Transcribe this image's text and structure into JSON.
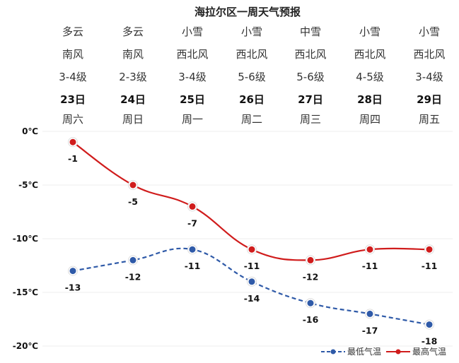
{
  "chart_data": {
    "type": "line",
    "title": "海拉尔区一周天气预报",
    "columns": [
      {
        "weather": "多云",
        "wind_dir": "南风",
        "wind_level": "3-4级",
        "date": "23日",
        "weekday": "周六"
      },
      {
        "weather": "多云",
        "wind_dir": "南风",
        "wind_level": "2-3级",
        "date": "24日",
        "weekday": "周日"
      },
      {
        "weather": "小雪",
        "wind_dir": "西北风",
        "wind_level": "3-4级",
        "date": "25日",
        "weekday": "周一"
      },
      {
        "weather": "小雪",
        "wind_dir": "西北风",
        "wind_level": "5-6级",
        "date": "26日",
        "weekday": "周二"
      },
      {
        "weather": "中雪",
        "wind_dir": "西北风",
        "wind_level": "5-6级",
        "date": "27日",
        "weekday": "周三"
      },
      {
        "weather": "小雪",
        "wind_dir": "西北风",
        "wind_level": "4-5级",
        "date": "28日",
        "weekday": "周四"
      },
      {
        "weather": "小雪",
        "wind_dir": "西北风",
        "wind_level": "3-4级",
        "date": "29日",
        "weekday": "周五"
      }
    ],
    "categories": [
      "23日",
      "24日",
      "25日",
      "26日",
      "27日",
      "28日",
      "29日"
    ],
    "series": [
      {
        "name": "最高气温",
        "values": [
          -1,
          -5,
          -7,
          -11,
          -12,
          -11,
          -11
        ],
        "color": "#d01c1c",
        "dash": false
      },
      {
        "name": "最低气温",
        "values": [
          -13,
          -12,
          -11,
          -14,
          -16,
          -17,
          -18
        ],
        "color": "#2f5aa8",
        "dash": true
      }
    ],
    "y_ticks": [
      "0℃",
      "-5℃",
      "-10℃",
      "-15℃",
      "-20℃"
    ],
    "y_tick_values": [
      0,
      -5,
      -10,
      -15,
      -20
    ],
    "ylim": [
      -20,
      0
    ],
    "grid": true,
    "legend_position": "bottom-right"
  }
}
